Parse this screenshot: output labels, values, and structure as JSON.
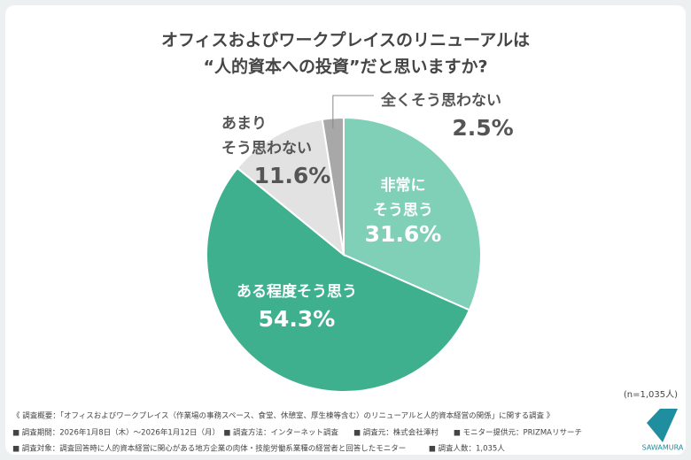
{
  "chart_data": {
    "type": "pie",
    "title": [
      "オフィスおよびワークプレイスのリニューアルは",
      "“人的資本への投資”だと思いますか?"
    ],
    "categories": [
      "非常に\nそう思う",
      "ある程度そう思う",
      "あまり\nそう思わない",
      "全くそう思わない"
    ],
    "values": [
      31.6,
      54.3,
      11.6,
      2.5
    ],
    "value_labels": [
      "31.6%",
      "54.3%",
      "11.6%",
      "2.5%"
    ],
    "colors": [
      "#80d0b8",
      "#3fb08e",
      "#e2e2e2",
      "#a8a8a8"
    ],
    "sample_size": "(n=1,035人)",
    "notes": [
      "《 調査概要：「オフィスおよびワークプレイス（作業場の事務スペース、食堂、休憩室、厚生棟等含む）のリニューアルと人的資本経営の関係」に関する調査 》",
      "■ 調査期間：2026年1月8日（木）〜2026年1月12日（月）　■ 調査方法：インターネット調査　　■ 調査元：株式会社澤村　　■ モニター提供元：PRIZMAリサーチ",
      "■ 調査対象：調査回答時に人的資本経営に関心がある地方企業の肉体・技能労働系業種の経営者と回答したモニター　　　■ 調査人数：1,035人"
    ],
    "logo": "SAWAMURA"
  }
}
